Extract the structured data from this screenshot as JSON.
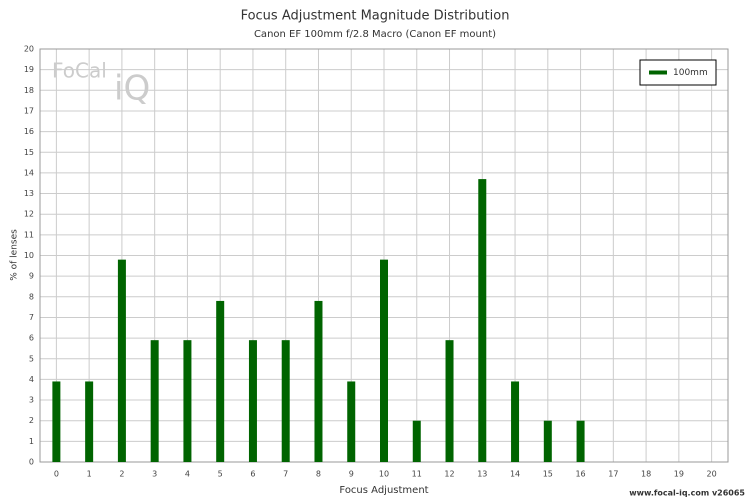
{
  "chart_data": {
    "type": "bar",
    "title": "Focus Adjustment Magnitude Distribution",
    "subtitle": "Canon EF 100mm f/2.8 Macro (Canon EF mount)",
    "x_label": "Focus Adjustment",
    "y_label": "% of lenses",
    "x": [
      0,
      1,
      2,
      3,
      4,
      5,
      6,
      7,
      8,
      9,
      10,
      11,
      12,
      13,
      14,
      15,
      16
    ],
    "series": [
      {
        "name": "100mm",
        "color": "#006400",
        "values": [
          3.9,
          3.9,
          9.8,
          5.9,
          5.9,
          7.8,
          5.9,
          5.9,
          7.8,
          3.9,
          9.8,
          2.0,
          5.9,
          13.7,
          3.9,
          2.0,
          2.0
        ]
      }
    ],
    "xlim": [
      -0.5,
      20.5
    ],
    "xticks": [
      0,
      1,
      2,
      3,
      4,
      5,
      6,
      7,
      8,
      9,
      10,
      11,
      12,
      13,
      14,
      15,
      16,
      17,
      18,
      19,
      20
    ],
    "ylim": [
      0,
      20
    ],
    "yticks": [
      0,
      1,
      2,
      3,
      4,
      5,
      6,
      7,
      8,
      9,
      10,
      11,
      12,
      13,
      14,
      15,
      16,
      17,
      18,
      19,
      20
    ],
    "grid": true,
    "legend_position": "top-right",
    "watermark": [
      "FoCal",
      "iQ"
    ],
    "footer": "www.focal-iq.com  v26065"
  }
}
